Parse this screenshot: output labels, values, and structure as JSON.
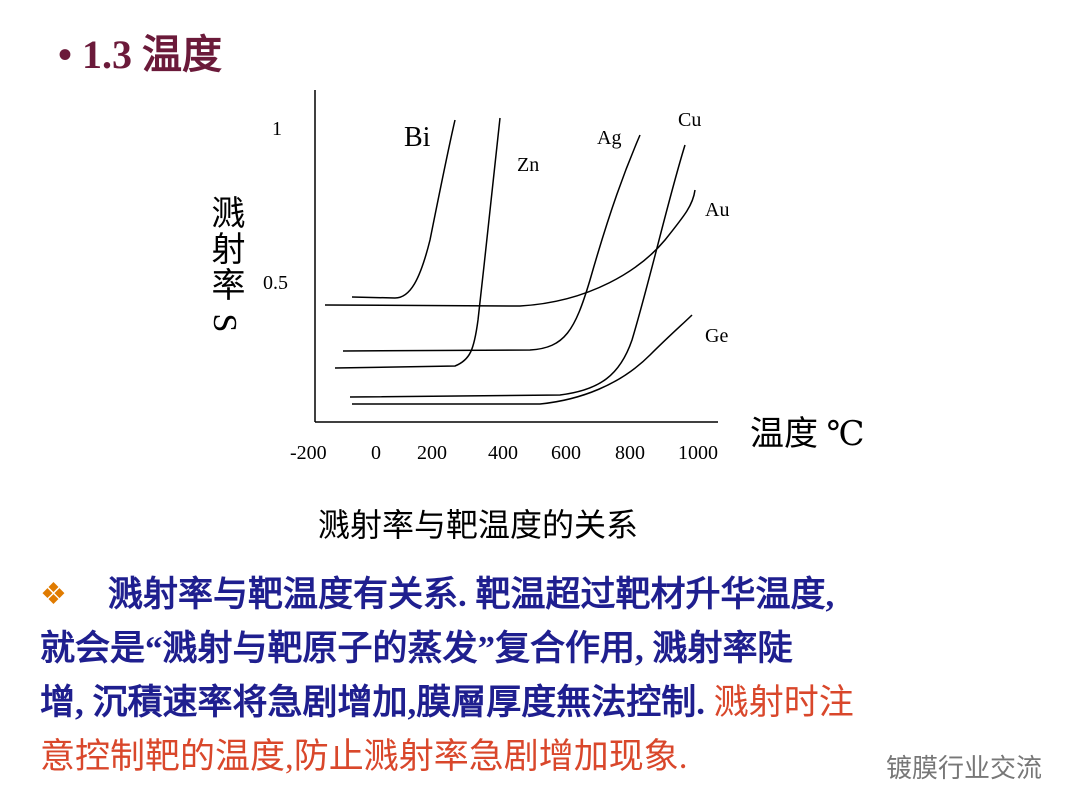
{
  "slide": {
    "title": "1.3 温度",
    "figure": {
      "y_axis_label": "溅射率 S",
      "x_axis_label": "温度 ℃",
      "y_tick_labels": [
        "1",
        "0.5"
      ],
      "x_tick_labels": [
        "-200",
        "0",
        "200",
        "400",
        "600",
        "800",
        "1000"
      ],
      "curve_labels": [
        "Bi",
        "Zn",
        "Ag",
        "Cu",
        "Au",
        "Ge"
      ],
      "caption": "溅射率与靶温度的关系"
    },
    "body": {
      "lines": [
        [
          {
            "text": "溅射率与靶温度有关系. 靶温超过靶材升华温度,",
            "color": "#1f1f8f"
          }
        ],
        [
          {
            "text": "就会是“溅射与靶原子的蒸发”复合作用, 溅射率陡",
            "color": "#1f1f8f"
          }
        ],
        [
          {
            "text": "增, 沉積速率将急剧增加,膜層厚度無法控制.",
            "color": "#1f1f8f"
          },
          {
            "text": " 溅射时注",
            "color": "#d9472b"
          }
        ],
        [
          {
            "text": "意控制靶的温度,防止溅射率急剧增加现象.",
            "color": "#d9472b"
          }
        ]
      ]
    },
    "watermark": "镀膜行业交流"
  }
}
